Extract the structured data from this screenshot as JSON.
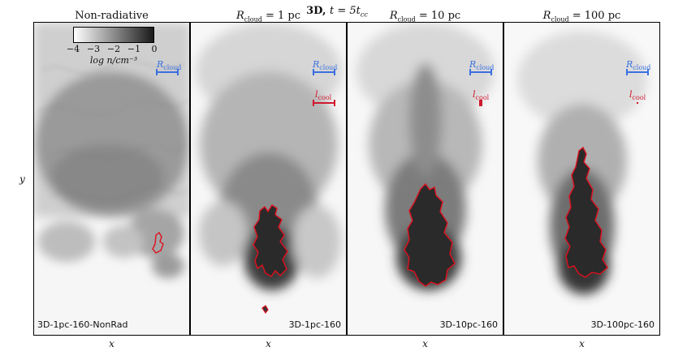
{
  "figure": {
    "suptitle_bold": "3D,",
    "suptitle_rest": "t = 5t",
    "suptitle_sub": "cc",
    "xlabel": "x",
    "ylabel": "y"
  },
  "colorbar": {
    "ticks": [
      "−4",
      "−3",
      "−2",
      "−1",
      "0"
    ],
    "label": "log n/cm⁻³",
    "range": [
      -4,
      0
    ],
    "colormap": "white-to-black"
  },
  "scale_labels": {
    "r_cloud_main": "R",
    "r_cloud_sub": "cloud",
    "l_cool_main": "l",
    "l_cool_sub": "cool"
  },
  "colors": {
    "r_cloud": "#3a6fe0",
    "l_cool": "#d0182e",
    "contour": "#e0101e"
  },
  "panels": [
    {
      "title_plain": "Non-radiative",
      "title_main": "",
      "title_sub": "",
      "title_value": "",
      "sim_label": "3D-1pc-160-NonRad",
      "shows_l_cool": false
    },
    {
      "title_plain": "",
      "title_main": "R",
      "title_sub": "cloud",
      "title_value": " = 1 pc",
      "sim_label": "3D-1pc-160",
      "shows_l_cool": true
    },
    {
      "title_plain": "",
      "title_main": "R",
      "title_sub": "cloud",
      "title_value": " = 10 pc",
      "sim_label": "3D-10pc-160",
      "shows_l_cool": true
    },
    {
      "title_plain": "",
      "title_main": "R",
      "title_sub": "cloud",
      "title_value": " = 100 pc",
      "sim_label": "3D-100pc-160",
      "shows_l_cool": true
    }
  ]
}
